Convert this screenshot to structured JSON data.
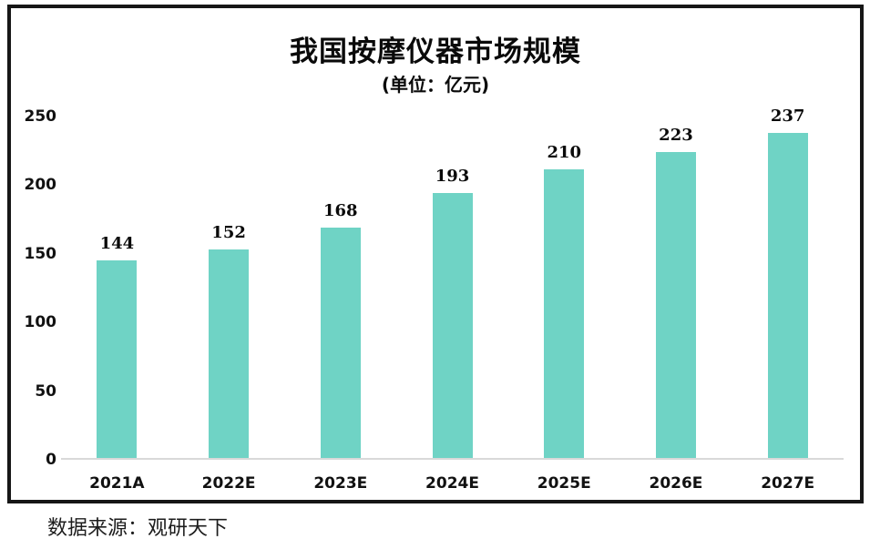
{
  "chart_data": {
    "type": "bar",
    "title": "我国按摩仪器市场规模",
    "subtitle": "(单位：亿元)",
    "categories": [
      "2021A",
      "2022E",
      "2023E",
      "2024E",
      "2025E",
      "2026E",
      "2027E"
    ],
    "values": [
      144,
      152,
      168,
      193,
      210,
      223,
      237
    ],
    "xlabel": "",
    "ylabel": "",
    "ylim": [
      0,
      250
    ],
    "yticks": [
      0,
      50,
      100,
      150,
      200,
      250
    ],
    "grid": false,
    "legend_position": "none",
    "bar_color": "#6FD3C5",
    "axis_line_color": "#D9D9D9",
    "frame_color": "#161616",
    "text_color": "#0A0A0A"
  },
  "source_note": "数据来源：观研天下"
}
